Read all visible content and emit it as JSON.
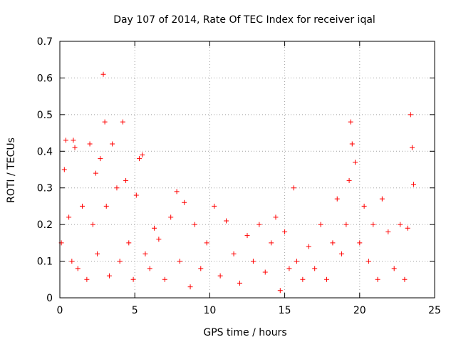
{
  "chart_data": {
    "type": "scatter",
    "title": "Day 107 of 2014, Rate Of TEC Index for receiver iqal",
    "xlabel": "GPS time / hours",
    "ylabel": "ROTI / TECUs",
    "xlim": [
      0,
      25
    ],
    "ylim": [
      0,
      0.7
    ],
    "xticks": [
      0,
      5,
      10,
      15,
      20,
      25
    ],
    "xtick_labels": [
      "0",
      "5",
      "10",
      "15",
      "20",
      "25"
    ],
    "yticks": [
      0,
      0.1,
      0.2,
      0.3,
      0.4,
      0.5,
      0.6,
      0.7
    ],
    "ytick_labels": [
      "0",
      "0.1",
      "0.2",
      "0.3",
      "0.4",
      "0.5",
      "0.6",
      "0.7"
    ],
    "grid": true,
    "marker": "+",
    "series_color": "#ff0000",
    "series": [
      {
        "name": "ROTI",
        "x": [
          0.1,
          0.3,
          0.4,
          0.6,
          0.8,
          0.9,
          1.0,
          1.2,
          1.5,
          1.8,
          2.0,
          2.2,
          2.4,
          2.5,
          2.7,
          2.9,
          3.0,
          3.1,
          3.3,
          3.5,
          3.8,
          4.0,
          4.2,
          4.4,
          4.6,
          4.9,
          5.1,
          5.3,
          5.5,
          5.7,
          6.0,
          6.3,
          6.6,
          7.0,
          7.4,
          7.8,
          8.0,
          8.3,
          8.7,
          9.0,
          9.4,
          9.8,
          10.3,
          10.7,
          11.1,
          11.6,
          12.0,
          12.5,
          12.9,
          13.3,
          13.7,
          14.1,
          14.4,
          14.7,
          15.0,
          15.3,
          15.6,
          15.8,
          16.2,
          16.6,
          17.0,
          17.4,
          17.8,
          18.2,
          18.5,
          18.8,
          19.1,
          19.3,
          19.4,
          19.5,
          19.7,
          20.0,
          20.3,
          20.6,
          20.9,
          21.2,
          21.5,
          21.9,
          22.3,
          22.7,
          23.0,
          23.2,
          23.4,
          23.5,
          23.6
        ],
        "y": [
          0.15,
          0.35,
          0.43,
          0.22,
          0.1,
          0.43,
          0.41,
          0.08,
          0.25,
          0.05,
          0.42,
          0.2,
          0.34,
          0.12,
          0.38,
          0.61,
          0.48,
          0.25,
          0.06,
          0.42,
          0.3,
          0.1,
          0.48,
          0.32,
          0.15,
          0.05,
          0.28,
          0.38,
          0.39,
          0.12,
          0.08,
          0.19,
          0.16,
          0.05,
          0.22,
          0.29,
          0.1,
          0.26,
          0.03,
          0.2,
          0.08,
          0.15,
          0.25,
          0.06,
          0.21,
          0.12,
          0.04,
          0.17,
          0.1,
          0.2,
          0.07,
          0.15,
          0.22,
          0.02,
          0.18,
          0.08,
          0.3,
          0.1,
          0.05,
          0.14,
          0.08,
          0.2,
          0.05,
          0.15,
          0.27,
          0.12,
          0.2,
          0.32,
          0.48,
          0.42,
          0.37,
          0.15,
          0.25,
          0.1,
          0.2,
          0.05,
          0.27,
          0.18,
          0.08,
          0.2,
          0.05,
          0.19,
          0.5,
          0.41,
          0.31
        ]
      }
    ]
  }
}
